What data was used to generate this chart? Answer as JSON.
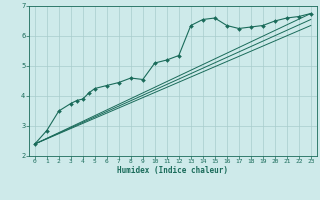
{
  "xlabel": "Humidex (Indice chaleur)",
  "bg_color": "#ceeaea",
  "grid_color": "#a8cccc",
  "line_color": "#1a6b5a",
  "xlim": [
    -0.5,
    23.5
  ],
  "ylim": [
    2,
    7
  ],
  "xticks": [
    0,
    1,
    2,
    3,
    4,
    5,
    6,
    7,
    8,
    9,
    10,
    11,
    12,
    13,
    14,
    15,
    16,
    17,
    18,
    19,
    20,
    21,
    22,
    23
  ],
  "yticks": [
    2,
    3,
    4,
    5,
    6,
    7
  ],
  "series_main": {
    "x": [
      0,
      1,
      2,
      3,
      3.5,
      4,
      4.5,
      5,
      6,
      7,
      8,
      9,
      10,
      11,
      12,
      13,
      14,
      15,
      16,
      17,
      18,
      19,
      20,
      21,
      22,
      23
    ],
    "y": [
      2.4,
      2.85,
      3.5,
      3.75,
      3.85,
      3.9,
      4.1,
      4.25,
      4.35,
      4.45,
      4.6,
      4.55,
      5.1,
      5.2,
      5.35,
      6.35,
      6.55,
      6.6,
      6.35,
      6.25,
      6.3,
      6.35,
      6.5,
      6.6,
      6.65,
      6.75
    ]
  },
  "series_lines": [
    {
      "x": [
        0,
        23
      ],
      "y": [
        2.4,
        6.75
      ]
    },
    {
      "x": [
        0,
        23
      ],
      "y": [
        2.4,
        6.55
      ]
    },
    {
      "x": [
        0,
        23
      ],
      "y": [
        2.4,
        6.35
      ]
    }
  ]
}
